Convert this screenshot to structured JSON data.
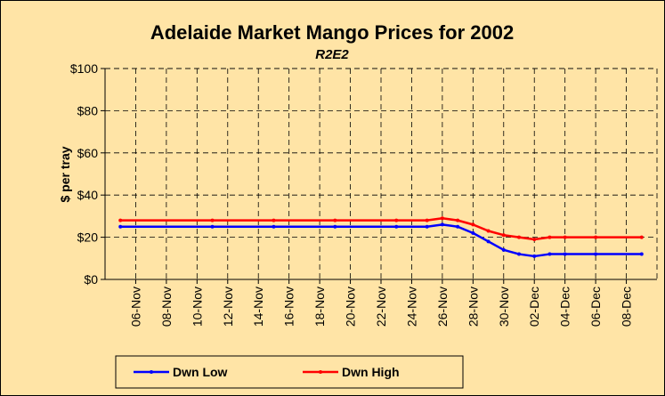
{
  "chart_data": {
    "type": "line",
    "title": "Adelaide Market Mango Prices for 2002",
    "subtitle": "R2E2",
    "y_label": "$ per tray",
    "x": [
      "05-Nov",
      "11-Nov",
      "15-Nov",
      "19-Nov",
      "23-Nov",
      "25-Nov",
      "26-Nov",
      "27-Nov",
      "28-Nov",
      "29-Nov",
      "30-Nov",
      "01-Dec",
      "02-Dec",
      "03-Dec",
      "04-Dec",
      "06-Dec",
      "09-Dec"
    ],
    "series": [
      {
        "name": "Dwn Low",
        "color": "#0000ff",
        "values": [
          25,
          25,
          25,
          25,
          25,
          25,
          26,
          25,
          22,
          18,
          14,
          12,
          11,
          12,
          12,
          12,
          12
        ]
      },
      {
        "name": "Dwn High",
        "color": "#ff0000",
        "values": [
          28,
          28,
          28,
          28,
          28,
          28,
          29,
          28,
          26,
          23,
          21,
          20,
          19,
          20,
          20,
          20,
          20
        ]
      }
    ],
    "xlim": [
      "04-Nov",
      "10-Dec"
    ],
    "xticks": [
      "06-Nov",
      "08-Nov",
      "10-Nov",
      "12-Nov",
      "14-Nov",
      "16-Nov",
      "18-Nov",
      "20-Nov",
      "22-Nov",
      "24-Nov",
      "26-Nov",
      "28-Nov",
      "30-Nov",
      "02-Dec",
      "04-Dec",
      "06-Dec",
      "08-Dec"
    ],
    "ylim": [
      0,
      100
    ],
    "yticks": [
      {
        "value": 0,
        "label": "$0"
      },
      {
        "value": 20,
        "label": "$20"
      },
      {
        "value": 40,
        "label": "$40"
      },
      {
        "value": 60,
        "label": "$60"
      },
      {
        "value": 80,
        "label": "$80"
      },
      {
        "value": 100,
        "label": "$100"
      }
    ],
    "grid": true,
    "legend": "bottom"
  }
}
